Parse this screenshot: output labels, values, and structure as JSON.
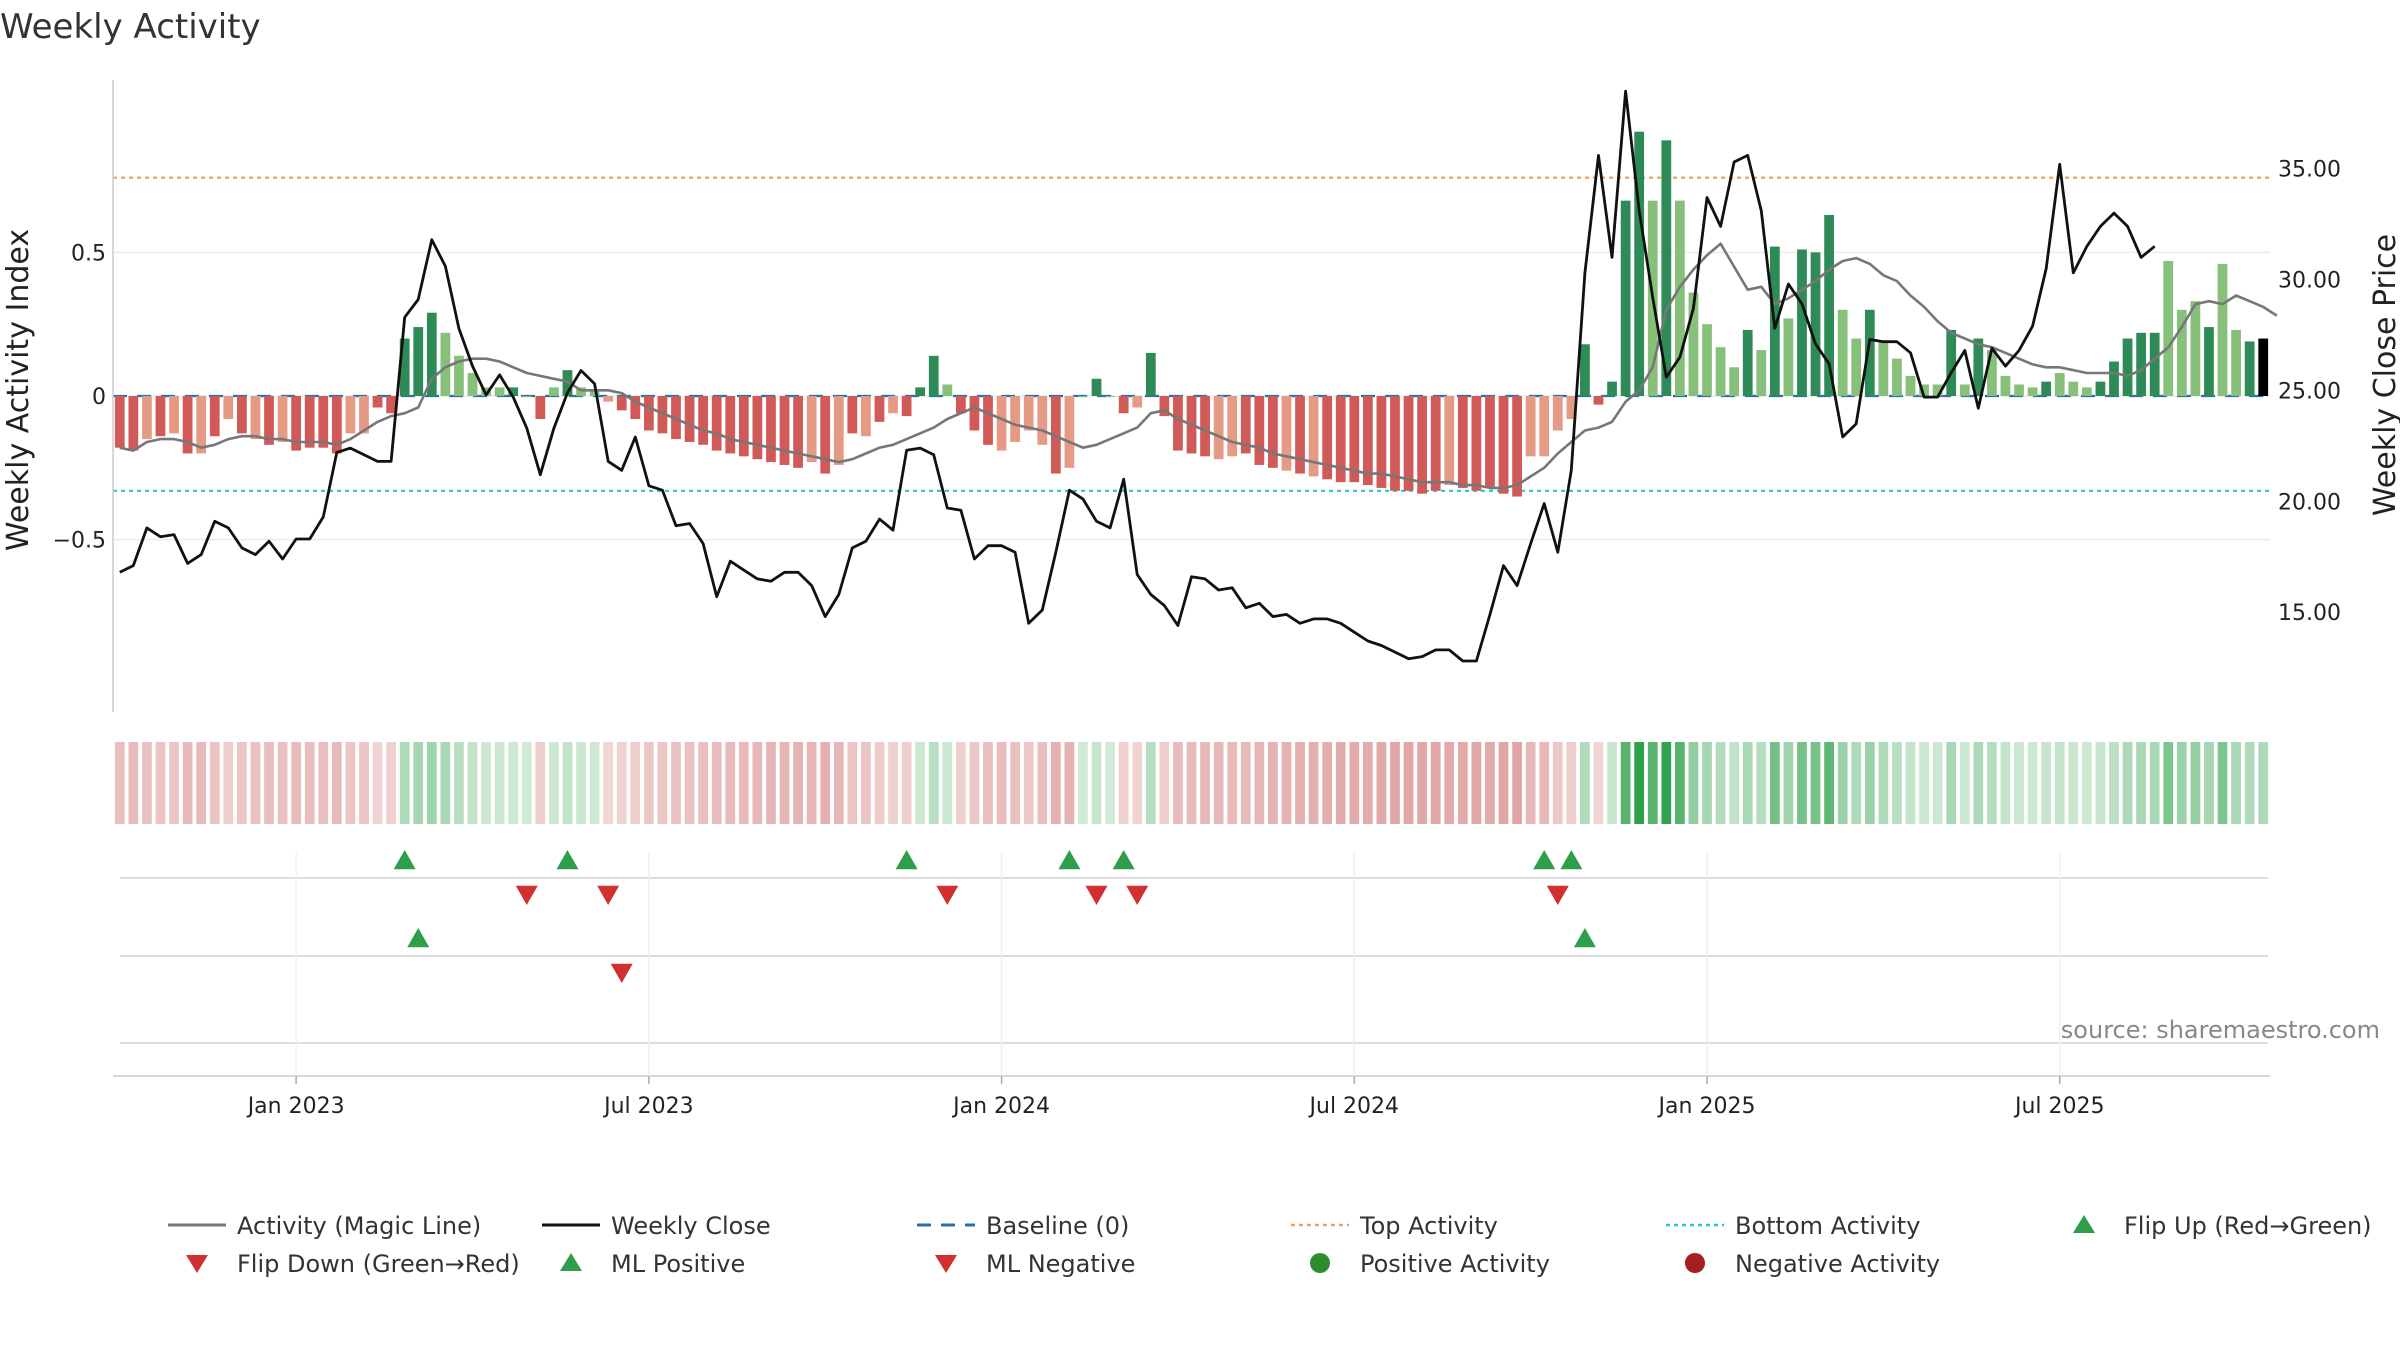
{
  "chart_data": {
    "type": "bar+line",
    "title": "Weekly Activity",
    "ylabel_left": "Weekly Activity Index",
    "ylabel_right": "Weekly Close Price",
    "source": "source: sharemaestro.com",
    "x_ticks": [
      "Jan 2023",
      "Jul 2023",
      "Jan 2024",
      "Jul 2024",
      "Jan 2025",
      "Jul 2025"
    ],
    "x_tick_weeks": [
      13,
      39,
      65,
      91,
      117,
      143
    ],
    "left_axis": {
      "ylim": [
        -1.1,
        1.1
      ],
      "ticks": [
        0.5,
        0,
        -0.5
      ],
      "tick_labels": [
        "0.5",
        "0",
        "−0.5"
      ]
    },
    "right_axis": {
      "ylim": [
        10.5,
        39
      ],
      "ticks": [
        35,
        30,
        25,
        20,
        15
      ],
      "tick_labels": [
        "35.00",
        "30.00",
        "25.00",
        "20.00",
        "15.00"
      ]
    },
    "top_activity": 0.76,
    "bottom_activity": -0.33,
    "baseline": 0,
    "activity": [
      -0.18,
      -0.19,
      -0.15,
      -0.14,
      -0.13,
      -0.2,
      -0.2,
      -0.14,
      -0.08,
      -0.13,
      -0.15,
      -0.17,
      -0.16,
      -0.19,
      -0.18,
      -0.18,
      -0.2,
      -0.13,
      -0.13,
      -0.04,
      -0.06,
      0.2,
      0.24,
      0.29,
      0.22,
      0.14,
      0.08,
      0.03,
      0.03,
      0.03,
      0,
      -0.08,
      0.03,
      0.09,
      0.03,
      0.02,
      -0.02,
      -0.05,
      -0.08,
      -0.12,
      -0.13,
      -0.15,
      -0.16,
      -0.17,
      -0.19,
      -0.2,
      -0.21,
      -0.22,
      -0.23,
      -0.24,
      -0.25,
      -0.23,
      -0.27,
      -0.24,
      -0.13,
      -0.14,
      -0.09,
      -0.06,
      -0.07,
      0.03,
      0.14,
      0.04,
      -0.06,
      -0.12,
      -0.17,
      -0.19,
      -0.16,
      -0.12,
      -0.17,
      -0.27,
      -0.25,
      0,
      0.06,
      0,
      -0.06,
      -0.04,
      0.15,
      -0.07,
      -0.19,
      -0.2,
      -0.21,
      -0.22,
      -0.21,
      -0.2,
      -0.24,
      -0.25,
      -0.26,
      -0.27,
      -0.28,
      -0.29,
      -0.3,
      -0.3,
      -0.31,
      -0.32,
      -0.33,
      -0.33,
      -0.34,
      -0.33,
      -0.31,
      -0.32,
      -0.33,
      -0.32,
      -0.34,
      -0.35,
      -0.21,
      -0.21,
      -0.12,
      -0.08,
      0.18,
      -0.03,
      0.05,
      0.68,
      0.92,
      0.68,
      0.89,
      0.68,
      0.36,
      0.25,
      0.17,
      0.1,
      0.23,
      0.16,
      0.52,
      0.27,
      0.51,
      0.5,
      0.63,
      0.3,
      0.2,
      0.3,
      0.19,
      0.13,
      0.07,
      0.04,
      0.04,
      0.23,
      0.04,
      0.2,
      0.16,
      0.07,
      0.04,
      0.03,
      0.05,
      0.08,
      0.05,
      0.03,
      0.05,
      0.12,
      0.2,
      0.22,
      0.22,
      0.47,
      0.3,
      0.33,
      0.24,
      0.46,
      0.23,
      0.19,
      0.2
    ],
    "activity_bar_colors": [
      "#d05a58",
      "#d05a58",
      "#e59a85",
      "#d05a58",
      "#e59a85",
      "#d05a58",
      "#e59a85",
      "#d05a58",
      "#e59a85",
      "#d05a58",
      "#e59a85",
      "#d05a58",
      "#e59a85",
      "#d05a58",
      "#d05a58",
      "#d05a58",
      "#d05a58",
      "#e59a85",
      "#e59a85",
      "#d05a58",
      "#d05a58",
      "#2e8b57",
      "#2e8b57",
      "#2e8b57",
      "#86c07a",
      "#86c07a",
      "#86c07a",
      "#86c07a",
      "#86c07a",
      "#2e8b57",
      "#86c07a",
      "#d05a58",
      "#86c07a",
      "#2e8b57",
      "#86c07a",
      "#86c07a",
      "#e59a85",
      "#d05a58",
      "#d05a58",
      "#d05a58",
      "#d05a58",
      "#d05a58",
      "#d05a58",
      "#d05a58",
      "#d05a58",
      "#d05a58",
      "#d05a58",
      "#d05a58",
      "#d05a58",
      "#d05a58",
      "#d05a58",
      "#e59a85",
      "#d05a58",
      "#e59a85",
      "#d05a58",
      "#e59a85",
      "#d05a58",
      "#e59a85",
      "#d05a58",
      "#2e8b57",
      "#2e8b57",
      "#86c07a",
      "#d05a58",
      "#d05a58",
      "#d05a58",
      "#e59a85",
      "#e59a85",
      "#e59a85",
      "#e59a85",
      "#d05a58",
      "#e59a85",
      "#86c07a",
      "#2e8b57",
      "#86c07a",
      "#d05a58",
      "#e59a85",
      "#2e8b57",
      "#d05a58",
      "#d05a58",
      "#d05a58",
      "#d05a58",
      "#e59a85",
      "#e59a85",
      "#d05a58",
      "#d05a58",
      "#d05a58",
      "#e59a85",
      "#d05a58",
      "#e59a85",
      "#d05a58",
      "#d05a58",
      "#d05a58",
      "#d05a58",
      "#d05a58",
      "#d05a58",
      "#d05a58",
      "#d05a58",
      "#d05a58",
      "#e59a85",
      "#d05a58",
      "#d05a58",
      "#d05a58",
      "#d05a58",
      "#d05a58",
      "#e59a85",
      "#e59a85",
      "#e59a85",
      "#e59a85",
      "#2e8b57",
      "#d05a58",
      "#2e8b57",
      "#2e8b57",
      "#2e8b57",
      "#86c07a",
      "#2e8b57",
      "#86c07a",
      "#86c07a",
      "#86c07a",
      "#86c07a",
      "#86c07a",
      "#2e8b57",
      "#86c07a",
      "#2e8b57",
      "#86c07a",
      "#2e8b57",
      "#2e8b57",
      "#2e8b57",
      "#86c07a",
      "#86c07a",
      "#2e8b57",
      "#86c07a",
      "#86c07a",
      "#86c07a",
      "#86c07a",
      "#86c07a",
      "#2e8b57",
      "#86c07a",
      "#2e8b57",
      "#86c07a",
      "#86c07a",
      "#86c07a",
      "#86c07a",
      "#2e8b57",
      "#86c07a",
      "#86c07a",
      "#86c07a",
      "#2e8b57",
      "#2e8b57",
      "#2e8b57",
      "#2e8b57",
      "#2e8b57",
      "#86c07a",
      "#86c07a",
      "#86c07a",
      "#2e8b57",
      "#86c07a",
      "#86c07a",
      "#2e8b57"
    ],
    "magic_line": [
      -0.18,
      -0.19,
      -0.16,
      -0.15,
      -0.15,
      -0.16,
      -0.18,
      -0.17,
      -0.15,
      -0.14,
      -0.14,
      -0.15,
      -0.15,
      -0.16,
      -0.16,
      -0.16,
      -0.17,
      -0.15,
      -0.12,
      -0.09,
      -0.07,
      -0.06,
      -0.04,
      0.06,
      0.1,
      0.12,
      0.13,
      0.13,
      0.12,
      0.1,
      0.08,
      0.07,
      0.06,
      0.05,
      0.02,
      0.02,
      0.02,
      0.01,
      -0.02,
      -0.04,
      -0.06,
      -0.08,
      -0.1,
      -0.12,
      -0.13,
      -0.15,
      -0.16,
      -0.17,
      -0.18,
      -0.19,
      -0.2,
      -0.21,
      -0.22,
      -0.23,
      -0.22,
      -0.2,
      -0.18,
      -0.17,
      -0.15,
      -0.13,
      -0.11,
      -0.08,
      -0.06,
      -0.04,
      -0.06,
      -0.08,
      -0.1,
      -0.11,
      -0.12,
      -0.14,
      -0.16,
      -0.18,
      -0.17,
      -0.15,
      -0.13,
      -0.11,
      -0.06,
      -0.05,
      -0.08,
      -0.1,
      -0.12,
      -0.14,
      -0.16,
      -0.17,
      -0.18,
      -0.2,
      -0.21,
      -0.22,
      -0.23,
      -0.24,
      -0.25,
      -0.26,
      -0.27,
      -0.27,
      -0.28,
      -0.29,
      -0.3,
      -0.3,
      -0.3,
      -0.31,
      -0.31,
      -0.32,
      -0.32,
      -0.31,
      -0.28,
      -0.25,
      -0.2,
      -0.16,
      -0.12,
      -0.11,
      -0.09,
      -0.02,
      0.02,
      0.1,
      0.3,
      0.38,
      0.44,
      0.49,
      0.53,
      0.45,
      0.37,
      0.38,
      0.32,
      0.34,
      0.37,
      0.4,
      0.44,
      0.47,
      0.48,
      0.46,
      0.42,
      0.4,
      0.35,
      0.31,
      0.26,
      0.22,
      0.2,
      0.18,
      0.17,
      0.15,
      0.13,
      0.11,
      0.1,
      0.1,
      0.09,
      0.08,
      0.08,
      0.08,
      0.07,
      0.09,
      0.13,
      0.17,
      0.24,
      0.32,
      0.33,
      0.32,
      0.35,
      0.33,
      0.31,
      0.28
    ],
    "weekly_close": [
      16.8,
      17.1,
      18.8,
      18.4,
      18.5,
      17.2,
      17.6,
      19.1,
      18.8,
      17.9,
      17.6,
      18.2,
      17.4,
      18.3,
      18.3,
      19.3,
      22.2,
      22.4,
      22.1,
      21.8,
      21.8,
      28.3,
      29.1,
      31.8,
      30.6,
      27.8,
      26.1,
      24.8,
      25.7,
      24.7,
      23.3,
      21.2,
      23.3,
      24.9,
      25.9,
      25.3,
      21.8,
      21.4,
      22.9,
      20.7,
      20.5,
      18.9,
      19,
      18.1,
      15.7,
      17.3,
      16.9,
      16.5,
      16.4,
      16.8,
      16.8,
      16.2,
      14.8,
      15.8,
      17.9,
      18.2,
      19.2,
      18.7,
      22.3,
      22.4,
      22.1,
      19.7,
      19.6,
      17.4,
      18,
      18,
      17.7,
      14.5,
      15.1,
      17.7,
      20.5,
      20.1,
      19.1,
      18.8,
      21,
      16.7,
      15.8,
      15.3,
      14.4,
      16.6,
      16.5,
      16,
      16.1,
      15.2,
      15.4,
      14.8,
      14.9,
      14.5,
      14.7,
      14.7,
      14.5,
      14.1,
      13.7,
      13.5,
      13.2,
      12.9,
      13,
      13.3,
      13.3,
      12.8,
      12.8,
      14.9,
      17.1,
      16.2,
      18.1,
      19.9,
      17.7,
      21.4,
      30.3,
      35.6,
      31,
      38.5,
      33.1,
      29.2,
      25.6,
      26.5,
      28.7,
      33.7,
      32.4,
      35.3,
      35.6,
      33.1,
      27.8,
      29.8,
      28.9,
      27.1,
      26.2,
      22.9,
      23.5,
      27.3,
      27.2,
      27.2,
      26.7,
      24.7,
      24.7,
      25.8,
      26.8,
      24.2,
      26.9,
      26.1,
      26.8,
      27.9,
      30.5,
      35.2,
      30.3,
      31.5,
      32.4,
      33,
      32.4,
      31,
      31.5
    ],
    "flip_up_weeks": [
      21,
      33,
      58,
      70,
      74,
      105,
      107
    ],
    "flip_down_weeks": [
      30,
      36,
      61,
      72,
      75,
      106
    ],
    "ml_positive_weeks": [
      22,
      108
    ],
    "ml_negative_weeks": [
      37
    ],
    "legend": [
      "Activity (Magic Line)",
      "Weekly Close",
      "Baseline (0)",
      "Top Activity",
      "Bottom Activity",
      "Flip Up (Red→Green)",
      "Flip Down (Green→Red)",
      "ML Positive",
      "ML Negative",
      "Positive Activity",
      "Negative Activity"
    ]
  },
  "colors": {
    "pos_dark": "#2e8b57",
    "pos_light": "#86c07a",
    "neg_dark": "#d05a58",
    "neg_light": "#e59a85",
    "magic_line": "#777777",
    "close_line": "#111111",
    "baseline": "#2b6fa8",
    "top_line": "#e8a15e",
    "bottom_line": "#2ec4c4",
    "marker_green": "#2e9e4a",
    "marker_red": "#d03030",
    "dot_green": "#2e8b2e",
    "dot_red": "#a81e1e"
  }
}
